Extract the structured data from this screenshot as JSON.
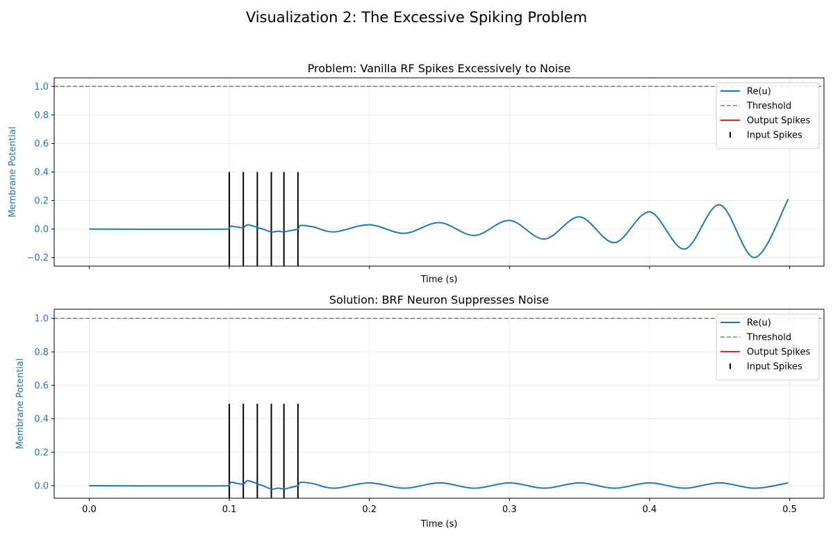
{
  "figure": {
    "suptitle": "Visualization 2: The Excessive Spiking Problem"
  },
  "colors": {
    "signal": "#1f77b4",
    "threshold": "#808080",
    "output_spikes": "#d62728",
    "input_spikes": "#000000",
    "grid": "#e6e6e6"
  },
  "chart_data": [
    {
      "type": "line",
      "title": "Problem: Vanilla RF Spikes Excessively to Noise",
      "xlabel": "Time (s)",
      "ylabel": "Membrane Potential",
      "xlim": [
        -0.025,
        0.5245
      ],
      "ylim": [
        -0.26,
        1.06
      ],
      "yticks": [
        -0.2,
        0.0,
        0.2,
        0.4,
        0.6,
        0.8,
        1.0
      ],
      "ytick_labels": [
        "−0.2",
        "0.0",
        "0.2",
        "0.4",
        "0.6",
        "0.8",
        "1.0"
      ],
      "xticks": [
        0.0,
        0.1,
        0.2,
        0.3,
        0.4,
        0.5
      ],
      "xtick_labels": [
        "",
        "",
        "",
        "",
        "",
        ""
      ],
      "grid": true,
      "legend_position": "top-right",
      "legend": [
        "Re(u)",
        "Threshold",
        "Output Spikes",
        "Input Spikes"
      ],
      "threshold": 1.0,
      "input_spike_times": [
        0.1,
        0.11,
        0.12,
        0.13,
        0.139,
        0.149
      ],
      "input_spike_height": 0.4,
      "output_spike_times": [],
      "series": [
        {
          "name": "Re(u)",
          "x": [
            0.0,
            0.099,
            0.101,
            0.105,
            0.11,
            0.113,
            0.119,
            0.12,
            0.124,
            0.13,
            0.135,
            0.139,
            0.144,
            0.149,
            0.151,
            0.16,
            0.175,
            0.2,
            0.225,
            0.25,
            0.275,
            0.3,
            0.325,
            0.35,
            0.375,
            0.4,
            0.425,
            0.45,
            0.475,
            0.499
          ],
          "y": [
            0.0,
            0.0,
            0.02,
            0.015,
            0.01,
            0.03,
            0.015,
            0.01,
            0.0,
            -0.02,
            -0.015,
            -0.02,
            -0.01,
            0.0,
            0.025,
            0.015,
            -0.02,
            0.03,
            -0.03,
            0.045,
            -0.045,
            0.06,
            -0.07,
            0.085,
            -0.095,
            0.12,
            -0.14,
            0.17,
            -0.2,
            0.21
          ]
        }
      ]
    },
    {
      "type": "line",
      "title": "Solution: BRF Neuron Suppresses Noise",
      "xlabel": "Time (s)",
      "ylabel": "Membrane Potential",
      "xlim": [
        -0.025,
        0.5245
      ],
      "ylim": [
        -0.075,
        1.055
      ],
      "yticks": [
        0.0,
        0.2,
        0.4,
        0.6,
        0.8,
        1.0
      ],
      "ytick_labels": [
        "0.0",
        "0.2",
        "0.4",
        "0.6",
        "0.8",
        "1.0"
      ],
      "xticks": [
        0.0,
        0.1,
        0.2,
        0.3,
        0.4,
        0.5
      ],
      "xtick_labels": [
        "0.0",
        "0.1",
        "0.2",
        "0.3",
        "0.4",
        "0.5"
      ],
      "grid": true,
      "legend_position": "top-right",
      "legend": [
        "Re(u)",
        "Threshold",
        "Output Spikes",
        "Input Spikes"
      ],
      "threshold": 1.0,
      "input_spike_times": [
        0.1,
        0.11,
        0.12,
        0.13,
        0.139,
        0.149
      ],
      "input_spike_height": 0.49,
      "output_spike_times": [],
      "series": [
        {
          "name": "Re(u)",
          "x": [
            0.0,
            0.099,
            0.101,
            0.105,
            0.11,
            0.113,
            0.119,
            0.12,
            0.124,
            0.13,
            0.135,
            0.139,
            0.144,
            0.149,
            0.151,
            0.16,
            0.175,
            0.2,
            0.225,
            0.25,
            0.275,
            0.3,
            0.325,
            0.35,
            0.375,
            0.4,
            0.425,
            0.45,
            0.475,
            0.499
          ],
          "y": [
            0.0,
            0.0,
            0.02,
            0.015,
            0.01,
            0.03,
            0.015,
            0.01,
            0.0,
            -0.02,
            -0.015,
            -0.02,
            -0.01,
            0.0,
            0.02,
            0.012,
            -0.015,
            0.017,
            -0.015,
            0.017,
            -0.015,
            0.017,
            -0.015,
            0.017,
            -0.015,
            0.017,
            -0.015,
            0.017,
            -0.015,
            0.017
          ]
        }
      ]
    }
  ]
}
